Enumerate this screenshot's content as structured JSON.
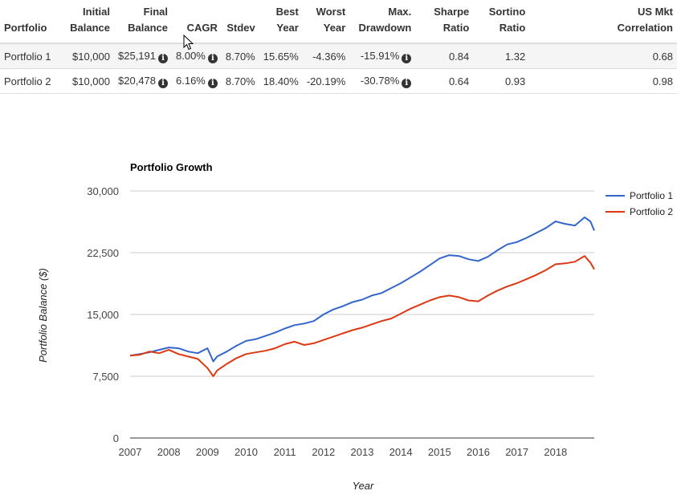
{
  "table": {
    "headers": {
      "portfolio": "Portfolio",
      "initial": [
        "Initial",
        "Balance"
      ],
      "final": [
        "Final",
        "Balance"
      ],
      "cagr": "CAGR",
      "stdev": "Stdev",
      "best": [
        "Best",
        "Year"
      ],
      "worst": [
        "Worst",
        "Year"
      ],
      "drawdown": [
        "Max.",
        "Drawdown"
      ],
      "sharpe": [
        "Sharpe",
        "Ratio"
      ],
      "sortino": [
        "Sortino",
        "Ratio"
      ],
      "correlation": [
        "US Mkt",
        "Correlation"
      ]
    },
    "info_glyph": "i",
    "rows": [
      {
        "portfolio": "Portfolio 1",
        "initial": "$10,000",
        "final": "$25,191",
        "cagr": "8.00%",
        "stdev": "8.70%",
        "best": "15.65%",
        "worst": "-4.36%",
        "drawdown": "-15.91%",
        "sharpe": "0.84",
        "sortino": "1.32",
        "correlation": "0.68"
      },
      {
        "portfolio": "Portfolio 2",
        "initial": "$10,000",
        "final": "$20,478",
        "cagr": "6.16%",
        "stdev": "8.70%",
        "best": "18.40%",
        "worst": "-20.19%",
        "drawdown": "-30.78%",
        "sharpe": "0.64",
        "sortino": "0.93",
        "correlation": "0.98"
      }
    ]
  },
  "chart_data": {
    "type": "line",
    "title": "Portfolio Growth",
    "xlabel": "Year",
    "ylabel": "Portfolio Balance ($)",
    "xlim": [
      2007,
      2019
    ],
    "ylim": [
      0,
      30000
    ],
    "yticks": [
      0,
      7500,
      15000,
      22500,
      30000
    ],
    "ytick_labels": [
      "0",
      "7,500",
      "15,000",
      "22,500",
      "30,000"
    ],
    "xticks": [
      2007,
      2008,
      2009,
      2010,
      2011,
      2012,
      2013,
      2014,
      2015,
      2016,
      2017,
      2018
    ],
    "xtick_labels": [
      "2007",
      "2008",
      "2009",
      "2010",
      "2011",
      "2012",
      "2013",
      "2014",
      "2015",
      "2016",
      "2017",
      "2018"
    ],
    "grid": true,
    "legend_position": "right",
    "series": [
      {
        "name": "Portfolio 1",
        "color": "#3366cc",
        "x": [
          2007.0,
          2007.25,
          2007.5,
          2007.75,
          2008.0,
          2008.25,
          2008.5,
          2008.75,
          2009.0,
          2009.15,
          2009.25,
          2009.5,
          2009.75,
          2010.0,
          2010.25,
          2010.5,
          2010.75,
          2011.0,
          2011.25,
          2011.5,
          2011.75,
          2012.0,
          2012.25,
          2012.5,
          2012.75,
          2013.0,
          2013.25,
          2013.5,
          2013.75,
          2014.0,
          2014.25,
          2014.5,
          2014.75,
          2015.0,
          2015.25,
          2015.5,
          2015.75,
          2016.0,
          2016.25,
          2016.5,
          2016.75,
          2017.0,
          2017.25,
          2017.5,
          2017.75,
          2018.0,
          2018.25,
          2018.5,
          2018.75,
          2018.9,
          2019.0
        ],
        "values": [
          10000,
          10200,
          10400,
          10700,
          11000,
          10900,
          10500,
          10300,
          10900,
          9300,
          9900,
          10500,
          11200,
          11800,
          12000,
          12400,
          12800,
          13300,
          13700,
          13900,
          14200,
          15000,
          15600,
          16000,
          16500,
          16800,
          17300,
          17600,
          18200,
          18800,
          19500,
          20200,
          21000,
          21800,
          22200,
          22100,
          21700,
          21500,
          22000,
          22800,
          23500,
          23800,
          24300,
          24900,
          25500,
          26300,
          26000,
          25800,
          26800,
          26300,
          25191
        ]
      },
      {
        "name": "Portfolio 2",
        "color": "#dc3912",
        "x": [
          2007.0,
          2007.25,
          2007.5,
          2007.75,
          2008.0,
          2008.25,
          2008.5,
          2008.75,
          2009.0,
          2009.15,
          2009.25,
          2009.5,
          2009.75,
          2010.0,
          2010.25,
          2010.5,
          2010.75,
          2011.0,
          2011.25,
          2011.5,
          2011.75,
          2012.0,
          2012.25,
          2012.5,
          2012.75,
          2013.0,
          2013.25,
          2013.5,
          2013.75,
          2014.0,
          2014.25,
          2014.5,
          2014.75,
          2015.0,
          2015.25,
          2015.5,
          2015.75,
          2016.0,
          2016.25,
          2016.5,
          2016.75,
          2017.0,
          2017.25,
          2017.5,
          2017.75,
          2018.0,
          2018.25,
          2018.5,
          2018.75,
          2018.9,
          2019.0
        ],
        "values": [
          10000,
          10100,
          10500,
          10300,
          10700,
          10200,
          9900,
          9600,
          8500,
          7500,
          8200,
          9000,
          9700,
          10200,
          10400,
          10600,
          10900,
          11400,
          11700,
          11300,
          11500,
          11900,
          12300,
          12700,
          13100,
          13400,
          13800,
          14200,
          14500,
          15100,
          15700,
          16200,
          16700,
          17100,
          17300,
          17100,
          16700,
          16600,
          17300,
          17900,
          18400,
          18800,
          19300,
          19800,
          20400,
          21100,
          21200,
          21400,
          22100,
          21300,
          20478
        ]
      }
    ]
  }
}
